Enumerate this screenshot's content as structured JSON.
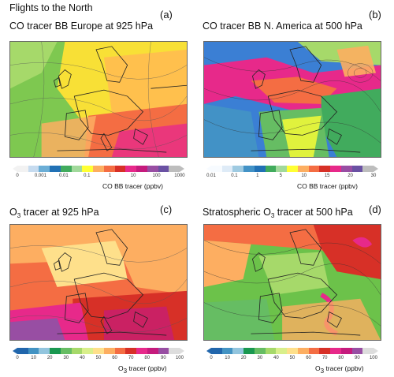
{
  "heading": "Flights to the North",
  "panels": [
    {
      "letter": "(a)",
      "title": "CO tracer BB Europe at 925 hPa",
      "colorbar_label": "CO BB tracer (ppbv)",
      "ticks": [
        "0",
        "0.001",
        "0.01",
        "0.1",
        "1",
        "10",
        "100",
        "1000"
      ],
      "palette": [
        "#f2f2f2",
        "#c6dbef",
        "#6baed6",
        "#2171b5",
        "#41ab5d",
        "#a1d99b",
        "#ffff33",
        "#fdae61",
        "#f46d43",
        "#d73027",
        "#e7298a",
        "#c51b7d",
        "#984ea3",
        "#6a51a3",
        "#bdbdbd"
      ],
      "base_color": "#7ec850"
    },
    {
      "letter": "(b)",
      "title": "CO tracer BB N. America at 500 hPa",
      "colorbar_label": "CO BB tracer (ppbv)",
      "ticks": [
        "0.01",
        "0.1",
        "1",
        "5",
        "10",
        "15",
        "20",
        "30"
      ],
      "palette": [
        "#f7fbff",
        "#deebf7",
        "#9ecae1",
        "#4292c6",
        "#2171b5",
        "#41ab5d",
        "#a1d99b",
        "#ffff33",
        "#fdae61",
        "#f46d43",
        "#d73027",
        "#e7298a",
        "#984ea3",
        "#6a51a3",
        "#bdbdbd"
      ],
      "base_color": "#4a90d9"
    },
    {
      "letter": "(c)",
      "title_prefix": "O",
      "title_sub": "3",
      "title_suffix": " tracer at 925 hPa",
      "colorbar_prefix": "O",
      "colorbar_sub": "3",
      "colorbar_suffix": " tracer (ppbv)",
      "ticks": [
        "0",
        "10",
        "20",
        "30",
        "40",
        "50",
        "60",
        "70",
        "80",
        "90",
        "100"
      ],
      "palette": [
        "#2166ac",
        "#4393c3",
        "#92c5de",
        "#1a9850",
        "#66bd63",
        "#a6d96a",
        "#d9ef8b",
        "#fee08b",
        "#fdae61",
        "#f46d43",
        "#d73027",
        "#e7298a",
        "#c51b7d",
        "#984ea3",
        "#dddddd"
      ],
      "base_color": "#f46d43"
    },
    {
      "letter": "(d)",
      "title_prefix": "Stratospheric O",
      "title_sub": "3",
      "title_suffix": " tracer at 500 hPa",
      "colorbar_prefix": "O",
      "colorbar_sub": "3",
      "colorbar_suffix": " tracer (ppbv)",
      "ticks": [
        "0",
        "10",
        "20",
        "30",
        "40",
        "50",
        "60",
        "70",
        "80",
        "90",
        "100"
      ],
      "palette": [
        "#2166ac",
        "#4393c3",
        "#92c5de",
        "#1a9850",
        "#66bd63",
        "#a6d96a",
        "#d9ef8b",
        "#fee08b",
        "#fdae61",
        "#f46d43",
        "#d73027",
        "#e7298a",
        "#c51b7d",
        "#984ea3",
        "#dddddd"
      ],
      "base_color": "#6cc24a"
    }
  ]
}
